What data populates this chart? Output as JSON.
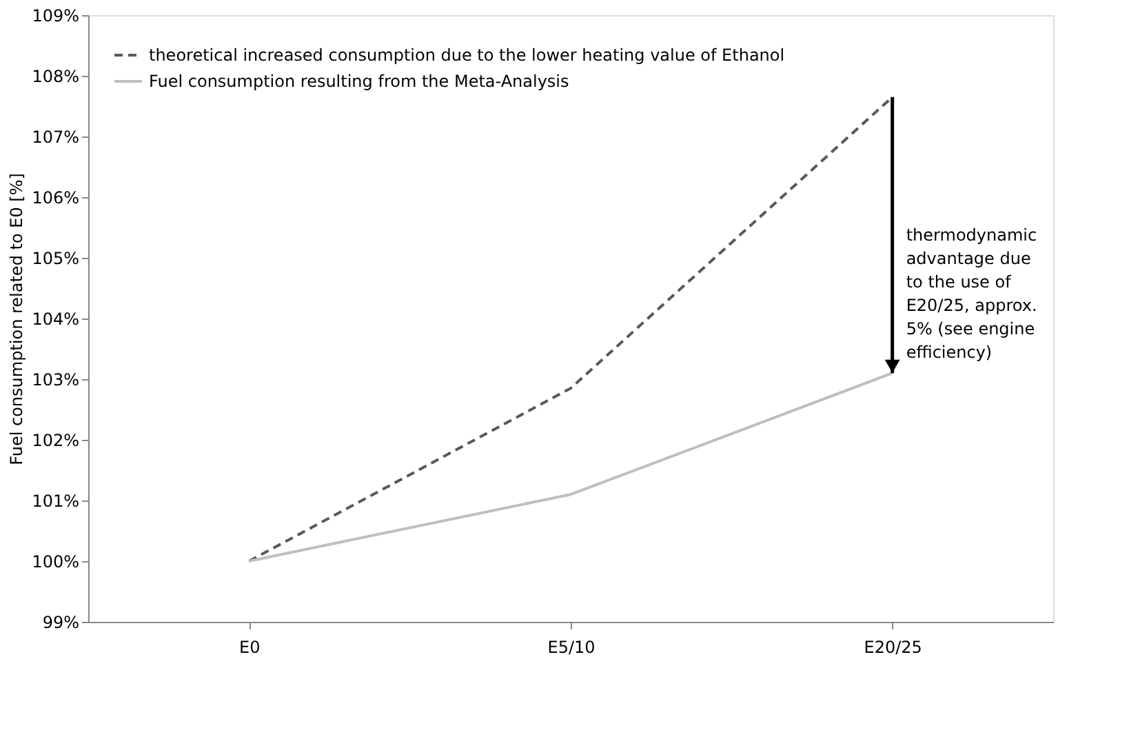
{
  "chart_data": {
    "type": "line",
    "ylabel": "Fuel consumption related to E0 [%]",
    "categories": [
      "E0",
      "E5/10",
      "E20/25"
    ],
    "series": [
      {
        "name": "theoretical increased consumption due to the lower heating value of Ethanol",
        "color": "#595959",
        "line_style": "dashed",
        "values": [
          100,
          102.85,
          107.65
        ]
      },
      {
        "name": "Fuel consumption resulting from the Meta-Analysis",
        "color": "#bfbfbf",
        "line_style": "solid",
        "values": [
          100,
          101.1,
          103.1
        ]
      }
    ],
    "ylim": [
      99,
      109
    ],
    "yticks": [
      {
        "value": 99,
        "label": "99%"
      },
      {
        "value": 100,
        "label": "100%"
      },
      {
        "value": 101,
        "label": "101%"
      },
      {
        "value": 102,
        "label": "102%"
      },
      {
        "value": 103,
        "label": "103%"
      },
      {
        "value": 104,
        "label": "104%"
      },
      {
        "value": 105,
        "label": "105%"
      },
      {
        "value": 106,
        "label": "106%"
      },
      {
        "value": 107,
        "label": "107%"
      },
      {
        "value": 108,
        "label": "108%"
      },
      {
        "value": 109,
        "label": "109%"
      }
    ],
    "grid": false,
    "legend": "top left",
    "marker": "none",
    "annotations": [
      "thermodynamic advantage due to the use of E20/25, approx. 5% (see engine efficiency)"
    ]
  }
}
